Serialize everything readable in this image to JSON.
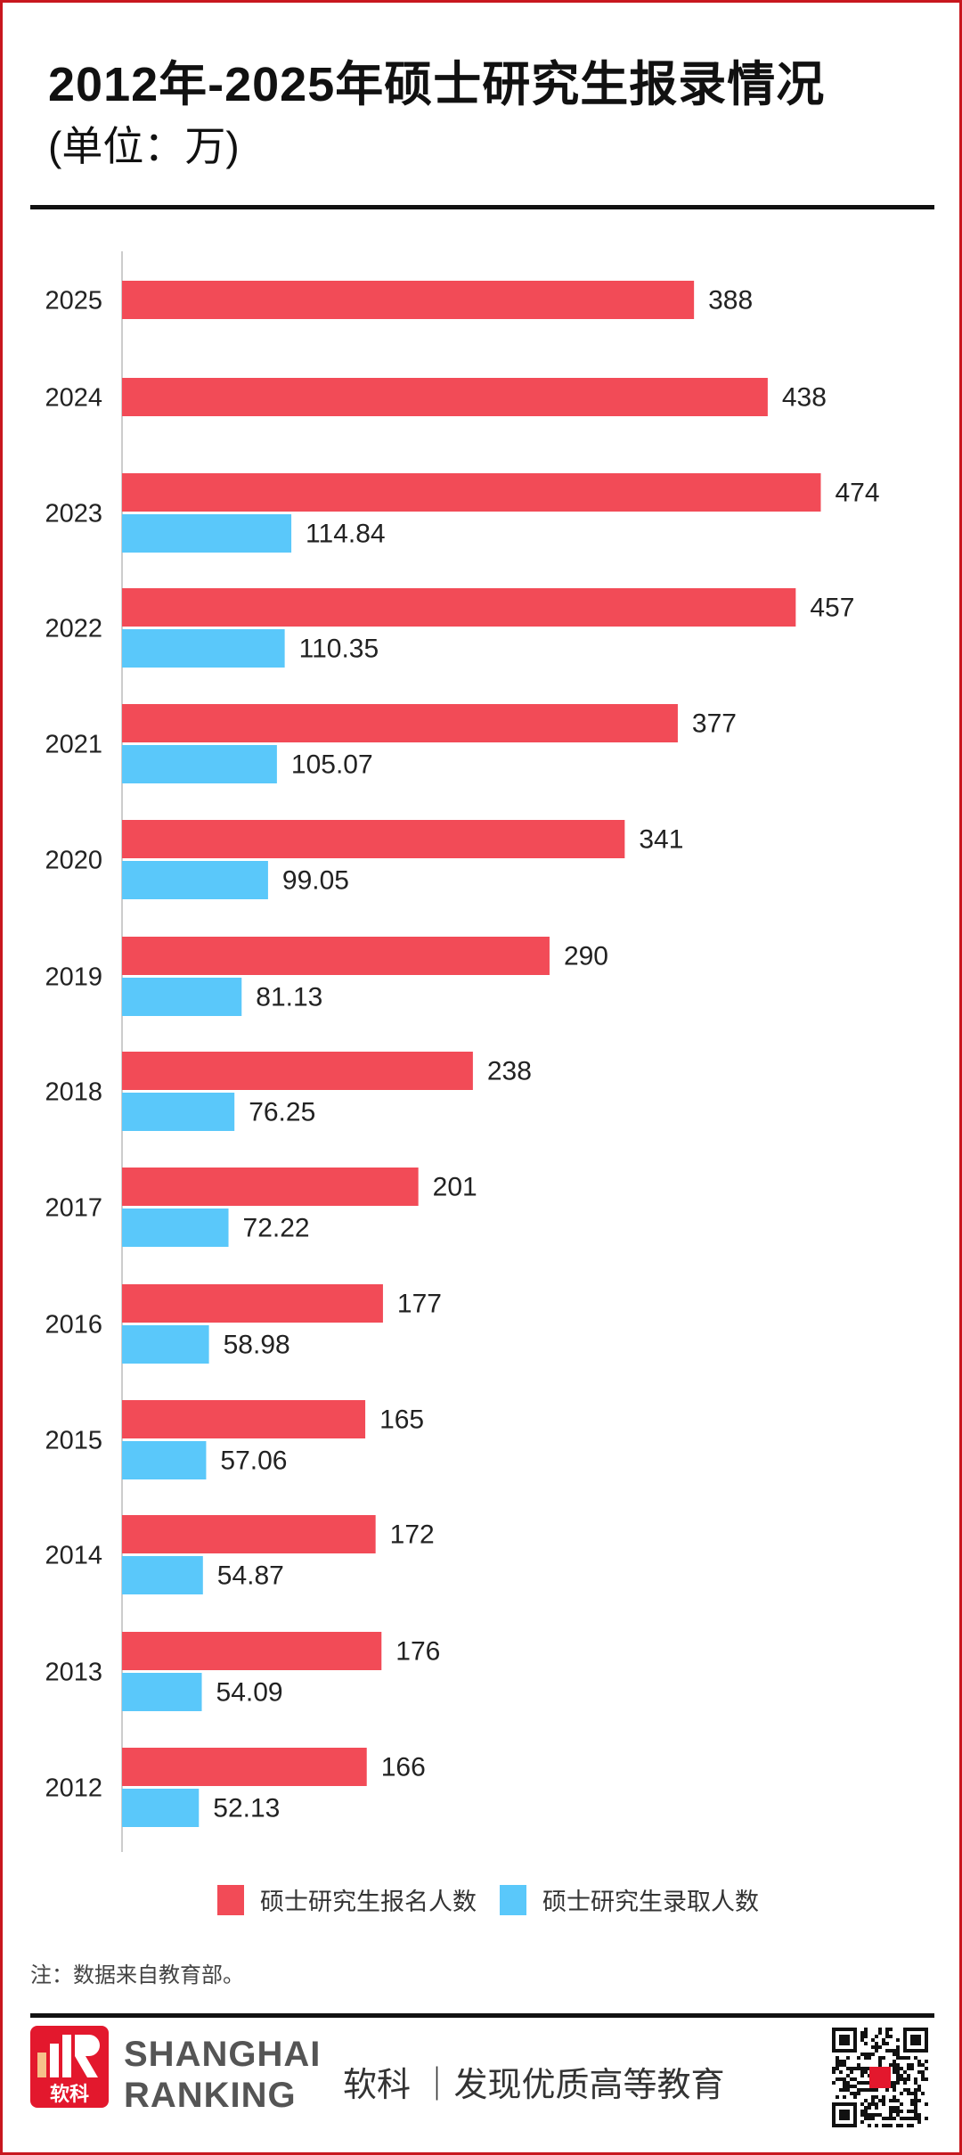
{
  "header": {
    "title": "2012年-2025年硕士研究生报录情况",
    "subtitle": "(单位：万)"
  },
  "chart_data": {
    "type": "bar",
    "orientation": "horizontal",
    "title": "2012年-2025年硕士研究生报录情况",
    "unit": "万",
    "categories": [
      "2025",
      "2024",
      "2023",
      "2022",
      "2021",
      "2020",
      "2019",
      "2018",
      "2017",
      "2016",
      "2015",
      "2014",
      "2013",
      "2012"
    ],
    "series": [
      {
        "name": "硕士研究生报名人数",
        "color": "#f24b57",
        "values": [
          388,
          438,
          474,
          457,
          377,
          341,
          290,
          238,
          201,
          177,
          165,
          172,
          176,
          166
        ],
        "labels": [
          "388",
          "438",
          "474",
          "457",
          "377",
          "341",
          "290",
          "238",
          "201",
          "177",
          "165",
          "172",
          "176",
          "166"
        ]
      },
      {
        "name": "硕士研究生录取人数",
        "color": "#5ac8fa",
        "values": [
          null,
          null,
          114.84,
          110.35,
          105.07,
          99.05,
          81.13,
          76.25,
          72.22,
          58.98,
          57.06,
          54.87,
          54.09,
          52.13
        ],
        "labels": [
          null,
          null,
          "114.84",
          "110.35",
          "105.07",
          "99.05",
          "81.13",
          "76.25",
          "72.22",
          "58.98",
          "57.06",
          "54.87",
          "54.09",
          "52.13"
        ]
      }
    ],
    "xlim": [
      0,
      500
    ],
    "grid": false,
    "legend": "bottom"
  },
  "note": "注：数据来自教育部。",
  "footer": {
    "logo_text": "软科",
    "brand_line1": "SHANGHAI",
    "brand_line2": "RANKING",
    "slogan": "软科 ｜发现优质高等教育"
  }
}
